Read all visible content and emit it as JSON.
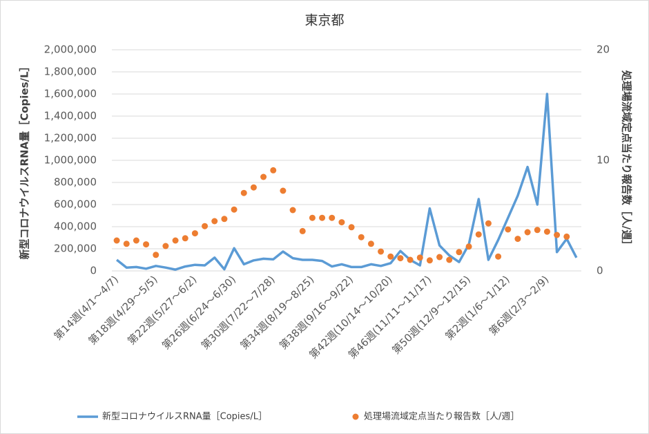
{
  "chart_data": {
    "type": "line_scatter_dual",
    "title": "東京都",
    "y_label": "新型コロナウイルスRNA量［Copies/L］",
    "y2_label": "処理場流域定点当たり報告数［人/週］",
    "categories": [
      "第14週(4/1～4/7)",
      null,
      null,
      null,
      "第18週(4/29～5/5)",
      null,
      null,
      null,
      "第22週(5/27～6/2)",
      null,
      null,
      null,
      "第26週(6/24～6/30)",
      null,
      null,
      null,
      "第30週(7/22～7/28)",
      null,
      null,
      null,
      "第34週(8/19～8/25)",
      null,
      null,
      null,
      "第38週(9/16～9/22)",
      null,
      null,
      null,
      "第42週(10/14～10/20)",
      null,
      null,
      null,
      "第46週(11/11～11/17)",
      null,
      null,
      null,
      "第50週(12/9～12/15)",
      null,
      null,
      null,
      "第2週(1/6～1/12)",
      null,
      null,
      null,
      "第6週(2/3～2/9)",
      null,
      null,
      null
    ],
    "series": [
      {
        "name": "新型コロナウイルスRNA量［Copies/L］",
        "color": "#5b9bd5",
        "type": "line",
        "values": [
          100000,
          30000,
          35000,
          20000,
          45000,
          30000,
          12000,
          40000,
          55000,
          50000,
          120000,
          15000,
          205000,
          60000,
          95000,
          110000,
          105000,
          175000,
          115000,
          100000,
          100000,
          90000,
          40000,
          60000,
          35000,
          35000,
          60000,
          45000,
          70000,
          180000,
          100000,
          50000,
          565000,
          230000,
          140000,
          80000,
          240000,
          650000,
          100000,
          280000,
          480000,
          680000,
          940000,
          600000,
          1600000,
          170000,
          290000,
          120000
        ]
      },
      {
        "name": "処理場流域定点当たり報告数［人/週］",
        "color": "#ed7d31",
        "type": "scatter",
        "axis": "y2",
        "values": [
          2.75,
          2.45,
          2.75,
          2.4,
          1.45,
          2.25,
          2.75,
          2.95,
          3.4,
          4.05,
          4.5,
          4.7,
          5.55,
          7.05,
          7.55,
          8.5,
          9.1,
          7.25,
          5.5,
          3.6,
          4.8,
          4.8,
          4.8,
          4.4,
          3.95,
          3.05,
          2.45,
          1.75,
          1.3,
          1.15,
          1.0,
          1.2,
          0.95,
          1.25,
          1.0,
          1.7,
          2.2,
          3.3,
          4.3,
          1.3,
          3.75,
          2.9,
          3.5,
          3.7,
          3.55,
          3.25,
          3.1,
          null
        ]
      }
    ],
    "ylim": [
      0,
      2000000
    ],
    "yticks": [
      0,
      {
        "value": 200000,
        "label": "200,000"
      },
      {
        "value": 400000,
        "label": "400,000"
      },
      {
        "value": 600000,
        "label": "600,000"
      },
      {
        "value": 800000,
        "label": "800,000"
      },
      {
        "value": 1000000,
        "label": "1,000,000"
      },
      {
        "value": 1200000,
        "label": "1,200,000"
      },
      {
        "value": 1400000,
        "label": "1,400,000"
      },
      {
        "value": 1600000,
        "label": "1,600,000"
      },
      {
        "value": 1800000,
        "label": "1,800,000"
      },
      {
        "value": 2000000,
        "label": "2,000,000"
      }
    ],
    "y2lim": [
      0,
      20
    ],
    "y2ticks": [
      0,
      10,
      20
    ],
    "grid": true
  }
}
